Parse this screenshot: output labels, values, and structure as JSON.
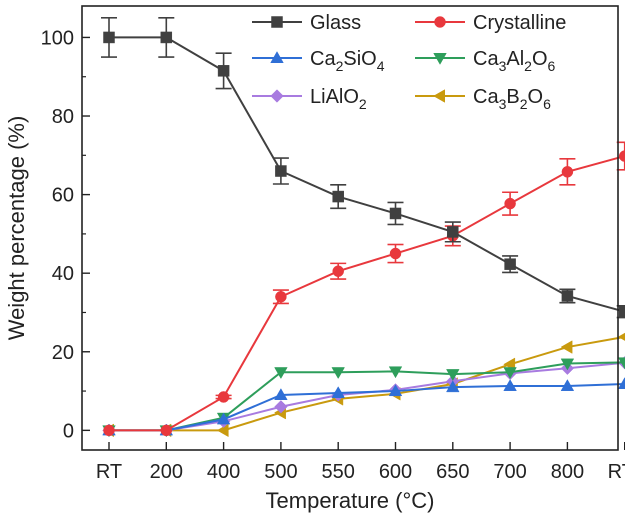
{
  "chart_data": {
    "type": "line",
    "title": "",
    "xlabel": "Temperature (°C)",
    "ylabel": "Weight percentage (%)",
    "categories": [
      "RT",
      "200",
      "400",
      "500",
      "550",
      "600",
      "650",
      "700",
      "800",
      "RTc"
    ],
    "ylim": [
      -5,
      108
    ],
    "yticks": [
      0,
      20,
      40,
      60,
      80,
      100
    ],
    "grid": false,
    "legend_position": "top-right",
    "series": [
      {
        "name": "Glass",
        "legend_parts": [
          [
            "Glass",
            ""
          ]
        ],
        "color": "#404040",
        "marker": "square",
        "values": [
          100,
          100,
          91.5,
          66,
          59.5,
          55.2,
          50.5,
          42.3,
          34.2,
          30.2
        ],
        "errors": [
          5,
          5,
          4.5,
          3.3,
          3,
          2.8,
          2.5,
          2.1,
          1.7,
          1.5
        ]
      },
      {
        "name": "Crystalline",
        "legend_parts": [
          [
            "Crystalline",
            ""
          ]
        ],
        "color": "#e8383d",
        "marker": "circle",
        "values": [
          0,
          0,
          8.5,
          34,
          40.5,
          45,
          49.5,
          57.7,
          65.8,
          69.8
        ],
        "errors": [
          0,
          0,
          0.4,
          1.7,
          2,
          2.3,
          2.5,
          2.9,
          3.3,
          3.5
        ]
      },
      {
        "name": "Ca2SiO4",
        "legend_parts": [
          [
            "Ca",
            "2"
          ],
          [
            "SiO",
            "4"
          ]
        ],
        "color": "#2f6fd6",
        "marker": "triangle-up",
        "values": [
          0,
          0,
          2.8,
          9,
          9.5,
          10,
          11,
          11.3,
          11.3,
          11.8
        ],
        "errors": [
          0,
          0,
          0,
          0,
          0,
          0,
          0,
          0,
          0,
          0
        ]
      },
      {
        "name": "Ca3Al2O6",
        "legend_parts": [
          [
            "Ca",
            "3"
          ],
          [
            "Al",
            "2"
          ],
          [
            "O",
            "6"
          ]
        ],
        "color": "#2e9e5b",
        "marker": "triangle-down",
        "values": [
          0,
          0,
          3.2,
          14.8,
          14.8,
          15,
          14.3,
          14.8,
          17,
          17.3
        ],
        "errors": [
          0,
          0,
          0,
          0,
          0,
          0,
          0,
          0,
          0,
          0
        ]
      },
      {
        "name": "LiAlO2",
        "legend_parts": [
          [
            "LiAlO",
            "2"
          ]
        ],
        "color": "#a87be0",
        "marker": "diamond",
        "values": [
          0,
          0,
          2.3,
          6,
          9,
          10.3,
          12.5,
          14.5,
          15.8,
          17.2
        ],
        "errors": [
          0,
          0,
          0,
          0,
          0,
          0,
          0,
          0,
          0,
          0
        ]
      },
      {
        "name": "Ca3B2O6",
        "legend_parts": [
          [
            "Ca",
            "3"
          ],
          [
            "B",
            "2"
          ],
          [
            "O",
            "6"
          ]
        ],
        "color": "#c99a0e",
        "marker": "triangle-left",
        "values": [
          0,
          0,
          0,
          4.5,
          8,
          9.3,
          11.8,
          16.8,
          21.2,
          23.8
        ],
        "errors": [
          0,
          0,
          0,
          0,
          0,
          0,
          0,
          0,
          0,
          0
        ]
      }
    ]
  }
}
